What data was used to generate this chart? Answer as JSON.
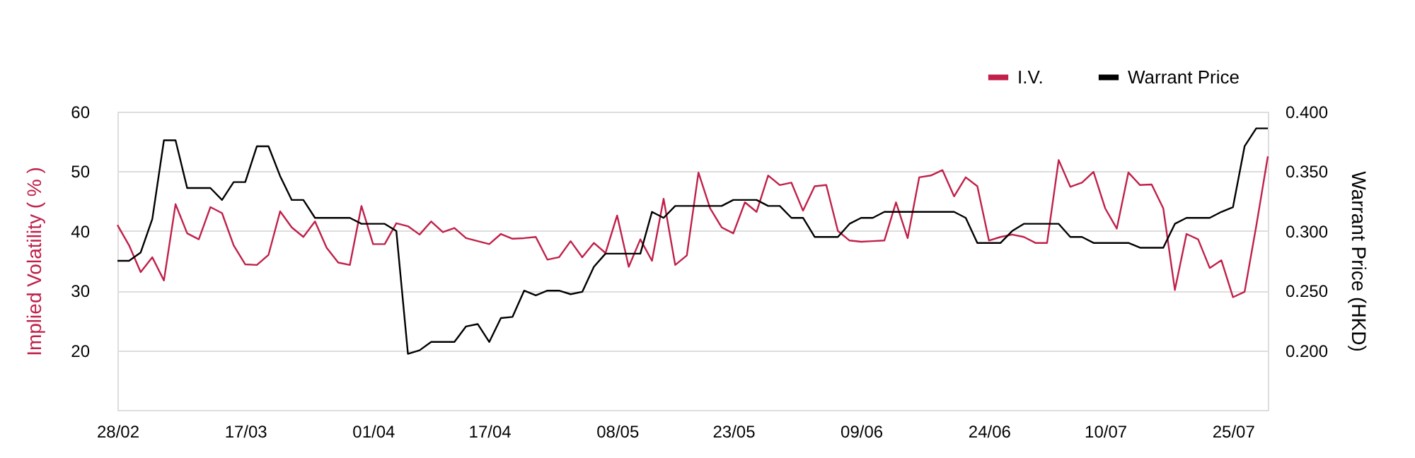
{
  "chart_data": {
    "type": "line",
    "categories": [
      "28/02",
      null,
      null,
      null,
      null,
      null,
      null,
      null,
      null,
      null,
      null,
      "17/03",
      null,
      null,
      null,
      null,
      null,
      null,
      null,
      null,
      null,
      null,
      "01/04",
      null,
      null,
      null,
      null,
      null,
      null,
      null,
      null,
      null,
      "17/04",
      null,
      null,
      null,
      null,
      null,
      null,
      null,
      null,
      null,
      null,
      "08/05",
      null,
      null,
      null,
      null,
      null,
      null,
      null,
      null,
      null,
      "23/05",
      null,
      null,
      null,
      null,
      null,
      null,
      null,
      null,
      null,
      null,
      "09/06",
      null,
      null,
      null,
      null,
      null,
      null,
      null,
      null,
      null,
      null,
      "24/06",
      null,
      null,
      null,
      null,
      null,
      null,
      null,
      null,
      null,
      "10/07",
      null,
      null,
      null,
      null,
      null,
      null,
      null,
      null,
      null,
      null,
      "25/07",
      null,
      null,
      null
    ],
    "series": [
      {
        "name": "I.V.",
        "color": "#c0204a",
        "values": [
          41.0,
          37.6,
          33.1,
          35.6,
          31.7,
          44.5,
          39.6,
          38.6,
          44.0,
          43.0,
          37.6,
          34.4,
          34.3,
          36.0,
          43.3,
          40.6,
          39.0,
          41.6,
          37.2,
          34.7,
          34.3,
          44.2,
          37.8,
          37.8,
          41.3,
          40.8,
          39.4,
          41.6,
          39.8,
          40.5,
          38.8,
          38.3,
          37.8,
          39.5,
          38.7,
          38.8,
          39.0,
          35.2,
          35.6,
          38.3,
          35.6,
          38.0,
          36.3,
          42.6,
          34.0,
          38.6,
          35.0,
          45.4,
          34.3,
          35.9,
          49.8,
          43.8,
          40.6,
          39.6,
          44.8,
          43.2,
          49.3,
          47.7,
          48.1,
          43.4,
          47.5,
          47.7,
          40.0,
          38.4,
          38.2,
          38.3,
          38.4,
          44.8,
          38.8,
          49.0,
          49.3,
          50.2,
          45.8,
          49.0,
          47.5,
          38.4,
          39.0,
          39.4,
          39.0,
          38.0,
          38.0,
          51.9,
          47.4,
          48.1,
          49.9,
          43.8,
          40.4,
          49.8,
          47.7,
          47.8,
          43.8,
          30.1,
          39.5,
          38.6,
          33.8,
          35.1,
          28.9,
          29.8,
          40.8,
          52.5
        ]
      },
      {
        "name": "Warrant Price",
        "color": "#000000",
        "axis": "y2",
        "values": [
          0.275,
          0.275,
          0.282,
          0.31,
          0.376,
          0.376,
          0.336,
          0.336,
          0.336,
          0.326,
          0.341,
          0.341,
          0.371,
          0.371,
          0.346,
          0.326,
          0.326,
          0.311,
          0.311,
          0.311,
          0.311,
          0.306,
          0.306,
          0.306,
          0.3,
          0.197,
          0.2,
          0.207,
          0.207,
          0.207,
          0.22,
          0.222,
          0.207,
          0.227,
          0.228,
          0.25,
          0.246,
          0.25,
          0.25,
          0.247,
          0.249,
          0.27,
          0.281,
          0.281,
          0.281,
          0.281,
          0.316,
          0.311,
          0.321,
          0.321,
          0.321,
          0.321,
          0.321,
          0.326,
          0.326,
          0.326,
          0.321,
          0.321,
          0.311,
          0.311,
          0.295,
          0.295,
          0.295,
          0.306,
          0.311,
          0.311,
          0.316,
          0.316,
          0.316,
          0.316,
          0.316,
          0.316,
          0.316,
          0.311,
          0.29,
          0.29,
          0.29,
          0.3,
          0.306,
          0.306,
          0.306,
          0.306,
          0.295,
          0.295,
          0.29,
          0.29,
          0.29,
          0.29,
          0.286,
          0.286,
          0.286,
          0.306,
          0.311,
          0.311,
          0.311,
          0.316,
          0.32,
          0.371,
          0.386,
          0.386
        ]
      }
    ],
    "ylabel": "Implied Volatility ( % )",
    "y2label": "Warrant Price (HKD)",
    "ylim": [
      10,
      60
    ],
    "yticks": [
      20,
      30,
      40,
      50,
      60
    ],
    "y2lim": [
      0.15,
      0.4
    ],
    "y2ticks": [
      {
        "value": 0.2,
        "label": "0.200"
      },
      {
        "value": 0.25,
        "label": "0.250"
      },
      {
        "value": 0.3,
        "label": "0.300"
      },
      {
        "value": 0.35,
        "label": "0.350"
      },
      {
        "value": 0.4,
        "label": "0.400"
      }
    ],
    "grid": "y",
    "legend": "top right",
    "line_style": "solid"
  }
}
